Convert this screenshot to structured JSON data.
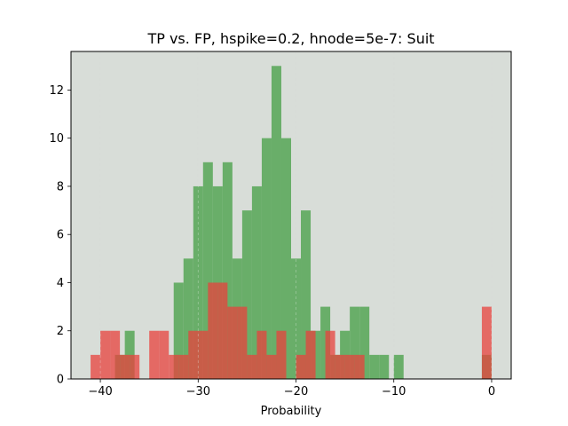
{
  "chart_data": {
    "type": "histogram",
    "title": "TP vs. FP, hspike=0.2, hnode=5e-7: Suit",
    "xlabel": "Probability",
    "ylabel": "",
    "xlim": [
      -43.0,
      2.0
    ],
    "ylim": [
      0,
      13.6
    ],
    "bin_width": 1.0,
    "xticks": [
      -40,
      -30,
      -20,
      -10,
      0
    ],
    "xtick_labels": [
      "−40",
      "−30",
      "−20",
      "−10",
      "0"
    ],
    "yticks": [
      0,
      2,
      4,
      6,
      8,
      10,
      12
    ],
    "ytick_labels": [
      "0",
      "2",
      "4",
      "6",
      "8",
      "10",
      "12"
    ],
    "grid": "x-dashed",
    "background": "#d8ddd8",
    "series": [
      {
        "color": "#4ea34e",
        "alpha": 0.8,
        "x": [
          -38.0,
          -37.0,
          -32.0,
          -31.0,
          -30.0,
          -29.0,
          -28.0,
          -27.0,
          -26.0,
          -25.0,
          -24.0,
          -23.0,
          -22.0,
          -21.0,
          -20.0,
          -19.0,
          -18.0,
          -17.0,
          -16.0,
          -15.0,
          -14.0,
          -13.0,
          -12.0,
          -11.0,
          -9.5,
          -0.5
        ],
        "values": [
          1,
          2,
          4,
          5,
          8,
          9,
          8,
          9,
          5,
          7,
          8,
          10,
          13,
          10,
          5,
          7,
          2,
          3,
          1,
          2,
          3,
          3,
          1,
          1,
          1,
          1
        ]
      },
      {
        "color": "#e8413d",
        "alpha": 0.75,
        "x": [
          -40.5,
          -39.5,
          -38.5,
          -37.5,
          -36.5,
          -34.5,
          -33.5,
          -32.5,
          -31.5,
          -30.5,
          -29.5,
          -28.5,
          -27.5,
          -26.5,
          -25.5,
          -24.5,
          -23.5,
          -22.5,
          -21.5,
          -19.5,
          -18.5,
          -16.5,
          -15.5,
          -14.5,
          -13.5,
          -0.5
        ],
        "values": [
          1,
          2,
          2,
          1,
          1,
          2,
          2,
          1,
          1,
          2,
          2,
          4,
          4,
          3,
          3,
          1,
          2,
          1,
          2,
          1,
          2,
          2,
          1,
          1,
          1,
          3
        ]
      }
    ],
    "overlap_color": "#b44a2c"
  }
}
